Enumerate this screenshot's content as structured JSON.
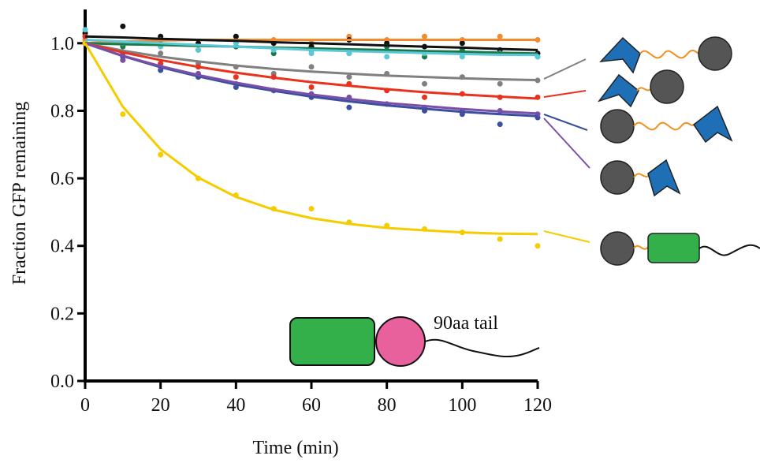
{
  "chart_data": {
    "type": "scatter",
    "xlabel": "Time (min)",
    "ylabel": "Fraction GFP remaining",
    "annotation": "90aa tail",
    "xlim": [
      0,
      120
    ],
    "xticks": [
      0,
      20,
      40,
      60,
      80,
      100,
      120
    ],
    "ylim": [
      0,
      1.1
    ],
    "yticks": [
      {
        "value": 0,
        "label": "0.0"
      },
      0.2,
      0.4,
      0.6,
      0.8,
      {
        "value": 1,
        "label": "1.0"
      }
    ],
    "x": [
      0,
      10,
      20,
      30,
      40,
      50,
      60,
      70,
      80,
      90,
      100,
      110,
      120
    ],
    "series": [
      {
        "color": "#f28a30",
        "values": [
          1.01,
          1.0,
          1.01,
          1.0,
          1.02,
          1.01,
          1.0,
          1.02,
          1.01,
          1.02,
          1.01,
          1.02,
          1.01
        ],
        "fit": [
          1.0,
          1.005,
          1.008,
          1.01,
          1.01,
          1.01,
          1.01,
          1.01,
          1.01,
          1.01,
          1.01,
          1.01,
          1.01
        ]
      },
      {
        "color": "#111111",
        "values": [
          1.03,
          1.05,
          1.02,
          1.0,
          1.02,
          1.0,
          0.99,
          1.01,
          1.0,
          0.99,
          1.0,
          0.98,
          0.97
        ],
        "fit": [
          1.02,
          1.017,
          1.013,
          1.01,
          1.007,
          1.003,
          1.0,
          0.997,
          0.993,
          0.99,
          0.987,
          0.983,
          0.98
        ]
      },
      {
        "color": "#1a7a4a",
        "values": [
          1.0,
          0.99,
          1.01,
          0.98,
          0.99,
          0.97,
          0.98,
          0.97,
          0.99,
          0.96,
          0.98,
          0.97,
          0.96
        ],
        "fit": [
          1.0,
          0.997,
          0.995,
          0.992,
          0.99,
          0.987,
          0.985,
          0.982,
          0.98,
          0.977,
          0.975,
          0.972,
          0.97
        ]
      },
      {
        "color": "#5bc8d8",
        "values": [
          1.04,
          1.0,
          0.99,
          0.98,
          1.0,
          0.98,
          0.97,
          0.97,
          0.96,
          0.97,
          0.96,
          0.97,
          0.96
        ],
        "fit": [
          1.01,
          1.005,
          1.0,
          0.995,
          0.99,
          0.985,
          0.98,
          0.977,
          0.974,
          0.971,
          0.968,
          0.966,
          0.965
        ]
      },
      {
        "color": "#808080",
        "values": [
          1.0,
          0.95,
          0.97,
          0.94,
          0.93,
          0.91,
          0.93,
          0.9,
          0.91,
          0.88,
          0.9,
          0.88,
          0.89
        ],
        "fit": [
          1.0,
          0.978,
          0.96,
          0.946,
          0.934,
          0.924,
          0.916,
          0.91,
          0.904,
          0.9,
          0.896,
          0.893,
          0.891
        ]
      },
      {
        "color": "#e8321e",
        "values": [
          1.02,
          0.97,
          0.94,
          0.93,
          0.9,
          0.9,
          0.87,
          0.88,
          0.86,
          0.84,
          0.85,
          0.84,
          0.84
        ],
        "fit": [
          1.0,
          0.973,
          0.95,
          0.93,
          0.913,
          0.898,
          0.885,
          0.874,
          0.864,
          0.855,
          0.848,
          0.842,
          0.836
        ]
      },
      {
        "color": "#3a4fa0",
        "values": [
          1.0,
          0.96,
          0.92,
          0.9,
          0.87,
          0.86,
          0.84,
          0.81,
          0.82,
          0.8,
          0.79,
          0.76,
          0.78
        ],
        "fit": [
          1.0,
          0.962,
          0.929,
          0.902,
          0.878,
          0.859,
          0.842,
          0.828,
          0.816,
          0.806,
          0.797,
          0.79,
          0.784
        ]
      },
      {
        "color": "#7a4fa8",
        "values": [
          1.0,
          0.95,
          0.93,
          0.91,
          0.88,
          0.86,
          0.85,
          0.84,
          0.82,
          0.81,
          0.8,
          0.8,
          0.79
        ],
        "fit": [
          1.0,
          0.963,
          0.932,
          0.906,
          0.883,
          0.864,
          0.848,
          0.835,
          0.823,
          0.814,
          0.805,
          0.798,
          0.792
        ]
      },
      {
        "color": "#f5cc00",
        "values": [
          1.0,
          0.79,
          0.67,
          0.6,
          0.55,
          0.51,
          0.51,
          0.47,
          0.46,
          0.45,
          0.44,
          0.42,
          0.4
        ],
        "fit": [
          1.0,
          0.812,
          0.686,
          0.602,
          0.545,
          0.507,
          0.482,
          0.465,
          0.453,
          0.446,
          0.44,
          0.436,
          0.435
        ]
      }
    ]
  }
}
